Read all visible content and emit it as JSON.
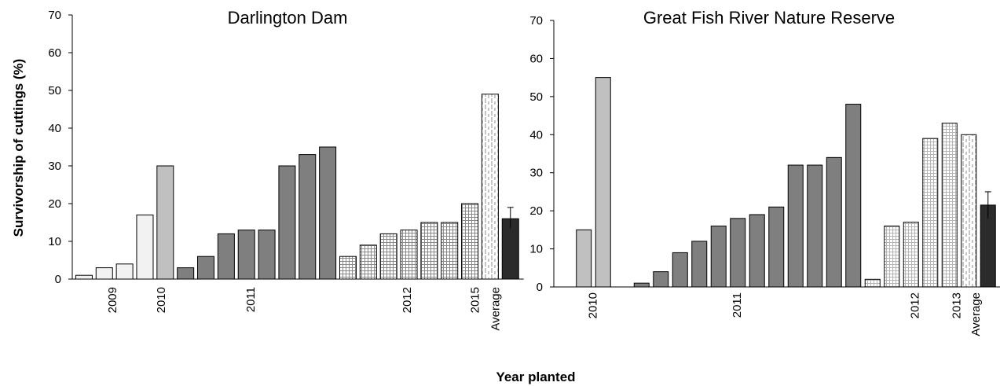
{
  "figure": {
    "ylabel": "Survivorship of cuttings (%)",
    "xlabel": "Year planted"
  },
  "chart_data": [
    {
      "type": "bar",
      "title": "Darlington Dam",
      "ylim": [
        0,
        70
      ],
      "yticks": [
        0,
        10,
        20,
        30,
        40,
        50,
        60,
        70
      ],
      "grid": false,
      "error_bar": [
        13.5,
        19
      ],
      "bars": [
        {
          "value": 1,
          "group": "2009",
          "fill": "plain",
          "color": "#f2f2f2"
        },
        {
          "value": 3,
          "group": "2009",
          "fill": "plain",
          "color": "#f2f2f2"
        },
        {
          "value": 4,
          "group": "2009",
          "fill": "plain",
          "color": "#f2f2f2"
        },
        {
          "value": 17,
          "group": "2009",
          "fill": "plain",
          "color": "#f2f2f2"
        },
        {
          "value": 30,
          "group": "2010",
          "fill": "plain",
          "color": "#c0c0c0"
        },
        {
          "value": 3,
          "group": "2011",
          "fill": "plain",
          "color": "#7f7f7f"
        },
        {
          "value": 6,
          "group": "2011",
          "fill": "plain",
          "color": "#7f7f7f"
        },
        {
          "value": 12,
          "group": "2011",
          "fill": "plain",
          "color": "#7f7f7f"
        },
        {
          "value": 13,
          "group": "2011",
          "fill": "plain",
          "color": "#7f7f7f"
        },
        {
          "value": 13,
          "group": "2011",
          "fill": "plain",
          "color": "#7f7f7f"
        },
        {
          "value": 30,
          "group": "2011",
          "fill": "plain",
          "color": "#7f7f7f"
        },
        {
          "value": 33,
          "group": "2011",
          "fill": "plain",
          "color": "#7f7f7f"
        },
        {
          "value": 35,
          "group": "2011",
          "fill": "plain",
          "color": "#7f7f7f"
        },
        {
          "value": 6,
          "group": "2012",
          "fill": "grid",
          "color": "#9a9a9a"
        },
        {
          "value": 9,
          "group": "2012",
          "fill": "grid",
          "color": "#9a9a9a"
        },
        {
          "value": 12,
          "group": "2012",
          "fill": "grid",
          "color": "#9a9a9a"
        },
        {
          "value": 13,
          "group": "2012",
          "fill": "grid",
          "color": "#9a9a9a"
        },
        {
          "value": 15,
          "group": "2012",
          "fill": "grid",
          "color": "#9a9a9a"
        },
        {
          "value": 15,
          "group": "2012",
          "fill": "grid",
          "color": "#9a9a9a"
        },
        {
          "value": 20,
          "group": "2012",
          "fill": "grid",
          "color": "#9a9a9a"
        },
        {
          "value": 49,
          "group": "2015",
          "fill": "dashed",
          "color": "#a0a0a0"
        },
        {
          "value": 16,
          "group": "Average",
          "fill": "plain",
          "color": "#2b2b2b"
        }
      ],
      "groups": [
        {
          "label": "2009",
          "center_bar": 1.9
        },
        {
          "label": "2010",
          "center_bar": 4.3
        },
        {
          "label": "2011",
          "center_bar": 8.7
        },
        {
          "label": "2012",
          "center_bar": 16.4
        },
        {
          "label": "2015",
          "center_bar": 19.75
        },
        {
          "label": "Average",
          "center_bar": 20.75
        }
      ]
    },
    {
      "type": "bar",
      "title": "Great Fish River Nature Reserve",
      "ylim": [
        0,
        70
      ],
      "yticks": [
        0,
        10,
        20,
        30,
        40,
        50,
        60,
        70
      ],
      "grid": false,
      "error_bar": [
        18,
        25
      ],
      "bars": [
        {
          "value": 15,
          "group": "2010",
          "fill": "plain",
          "color": "#c0c0c0"
        },
        {
          "value": 55,
          "group": "2010",
          "fill": "plain",
          "color": "#c0c0c0"
        },
        {
          "value": 0,
          "group": "2011",
          "fill": "plain",
          "color": "#7f7f7f"
        },
        {
          "value": 1,
          "group": "2011",
          "fill": "plain",
          "color": "#7f7f7f"
        },
        {
          "value": 4,
          "group": "2011",
          "fill": "plain",
          "color": "#7f7f7f"
        },
        {
          "value": 9,
          "group": "2011",
          "fill": "plain",
          "color": "#7f7f7f"
        },
        {
          "value": 12,
          "group": "2011",
          "fill": "plain",
          "color": "#7f7f7f"
        },
        {
          "value": 16,
          "group": "2011",
          "fill": "plain",
          "color": "#7f7f7f"
        },
        {
          "value": 18,
          "group": "2011",
          "fill": "plain",
          "color": "#7f7f7f"
        },
        {
          "value": 19,
          "group": "2011",
          "fill": "plain",
          "color": "#7f7f7f"
        },
        {
          "value": 21,
          "group": "2011",
          "fill": "plain",
          "color": "#7f7f7f"
        },
        {
          "value": 32,
          "group": "2011",
          "fill": "plain",
          "color": "#7f7f7f"
        },
        {
          "value": 32,
          "group": "2011",
          "fill": "plain",
          "color": "#7f7f7f"
        },
        {
          "value": 34,
          "group": "2011",
          "fill": "plain",
          "color": "#7f7f7f"
        },
        {
          "value": 48,
          "group": "2011",
          "fill": "plain",
          "color": "#7f7f7f"
        },
        {
          "value": 2,
          "group": "2012",
          "fill": "grid",
          "color": "#b0b0b0"
        },
        {
          "value": 16,
          "group": "2012",
          "fill": "grid",
          "color": "#b0b0b0"
        },
        {
          "value": 17,
          "group": "2012",
          "fill": "grid",
          "color": "#b0b0b0"
        },
        {
          "value": 39,
          "group": "2012",
          "fill": "grid",
          "color": "#b0b0b0"
        },
        {
          "value": 43,
          "group": "2012",
          "fill": "grid",
          "color": "#b0b0b0"
        },
        {
          "value": 40,
          "group": "2013",
          "fill": "dashed",
          "color": "#a0a0a0"
        },
        {
          "value": 21.5,
          "group": "Average",
          "fill": "plain",
          "color": "#2b2b2b"
        }
      ],
      "groups": [
        {
          "label": "2010",
          "center_bar": 0.95
        },
        {
          "label": "2011",
          "center_bar": 8.45
        },
        {
          "label": "2012",
          "center_bar": 17.7
        },
        {
          "label": "2013",
          "center_bar": 19.85
        },
        {
          "label": "Average",
          "center_bar": 20.85
        }
      ]
    }
  ]
}
